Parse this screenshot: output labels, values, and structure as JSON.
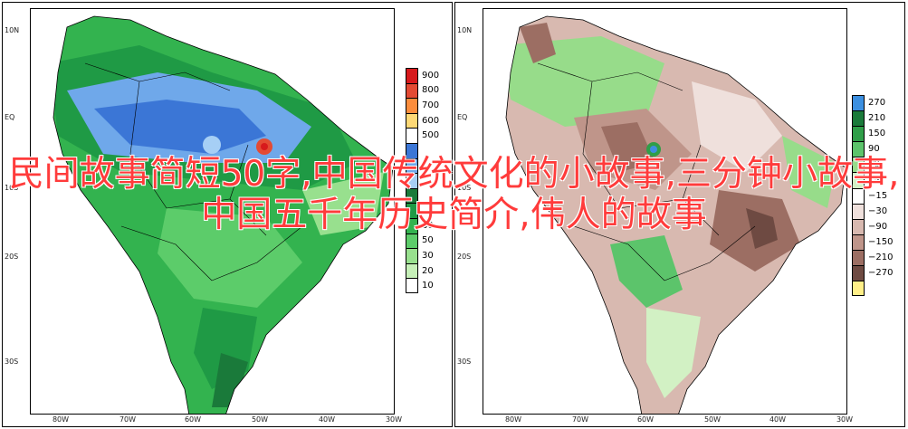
{
  "overlay_title": "民间故事简短50字,中国传统文化的小故事,三分钟小故事,中国五千年历史简介,伟人的故事",
  "left_map": {
    "lat_ticks": [
      "10N",
      "EQ",
      "10S",
      "20S",
      "30S"
    ],
    "lon_ticks": [
      "80W",
      "70W",
      "60W",
      "50W",
      "40W",
      "30W"
    ],
    "legend": [
      {
        "label": "900",
        "color": "#d7191c"
      },
      {
        "label": "800",
        "color": "#e34a33"
      },
      {
        "label": "700",
        "color": "#fc8d3c"
      },
      {
        "label": "600",
        "color": "#fed976"
      },
      {
        "label": "500",
        "color": "#ffffff"
      },
      {
        "label": "",
        "color": "#3b76d6"
      },
      {
        "label": "",
        "color": "#6fa8ea"
      },
      {
        "label": "",
        "color": "#a6cff5"
      },
      {
        "label": "",
        "color": "#1a7a3a"
      },
      {
        "label": "",
        "color": "#1f9a45"
      },
      {
        "label": "60",
        "color": "#33b34f"
      },
      {
        "label": "50",
        "color": "#5ccc6a"
      },
      {
        "label": "30",
        "color": "#98e08e"
      },
      {
        "label": "20",
        "color": "#c6f0b8"
      },
      {
        "label": "10",
        "color": "#ffffff"
      }
    ]
  },
  "right_map": {
    "lat_ticks": [
      "10N",
      "EQ",
      "10S",
      "20S",
      "30S"
    ],
    "lon_ticks": [
      "80W",
      "70W",
      "60W",
      "50W",
      "40W",
      "30W"
    ],
    "legend": [
      {
        "label": "270",
        "color": "#3c8fe0"
      },
      {
        "label": "210",
        "color": "#1a7a3a"
      },
      {
        "label": "150",
        "color": "#2f9e48"
      },
      {
        "label": "90",
        "color": "#5cc46b"
      },
      {
        "label": "30",
        "color": "#97dc8a"
      },
      {
        "label": "15",
        "color": "#d2f1c4"
      },
      {
        "label": "−15",
        "color": "#ffffff"
      },
      {
        "label": "−30",
        "color": "#efe0dc"
      },
      {
        "label": "−90",
        "color": "#d8b9b0"
      },
      {
        "label": "−150",
        "color": "#bf958a"
      },
      {
        "label": "−210",
        "color": "#9c6e63"
      },
      {
        "label": "−270",
        "color": "#6e4a42"
      },
      {
        "label": "",
        "color": "#ffef88"
      }
    ]
  }
}
